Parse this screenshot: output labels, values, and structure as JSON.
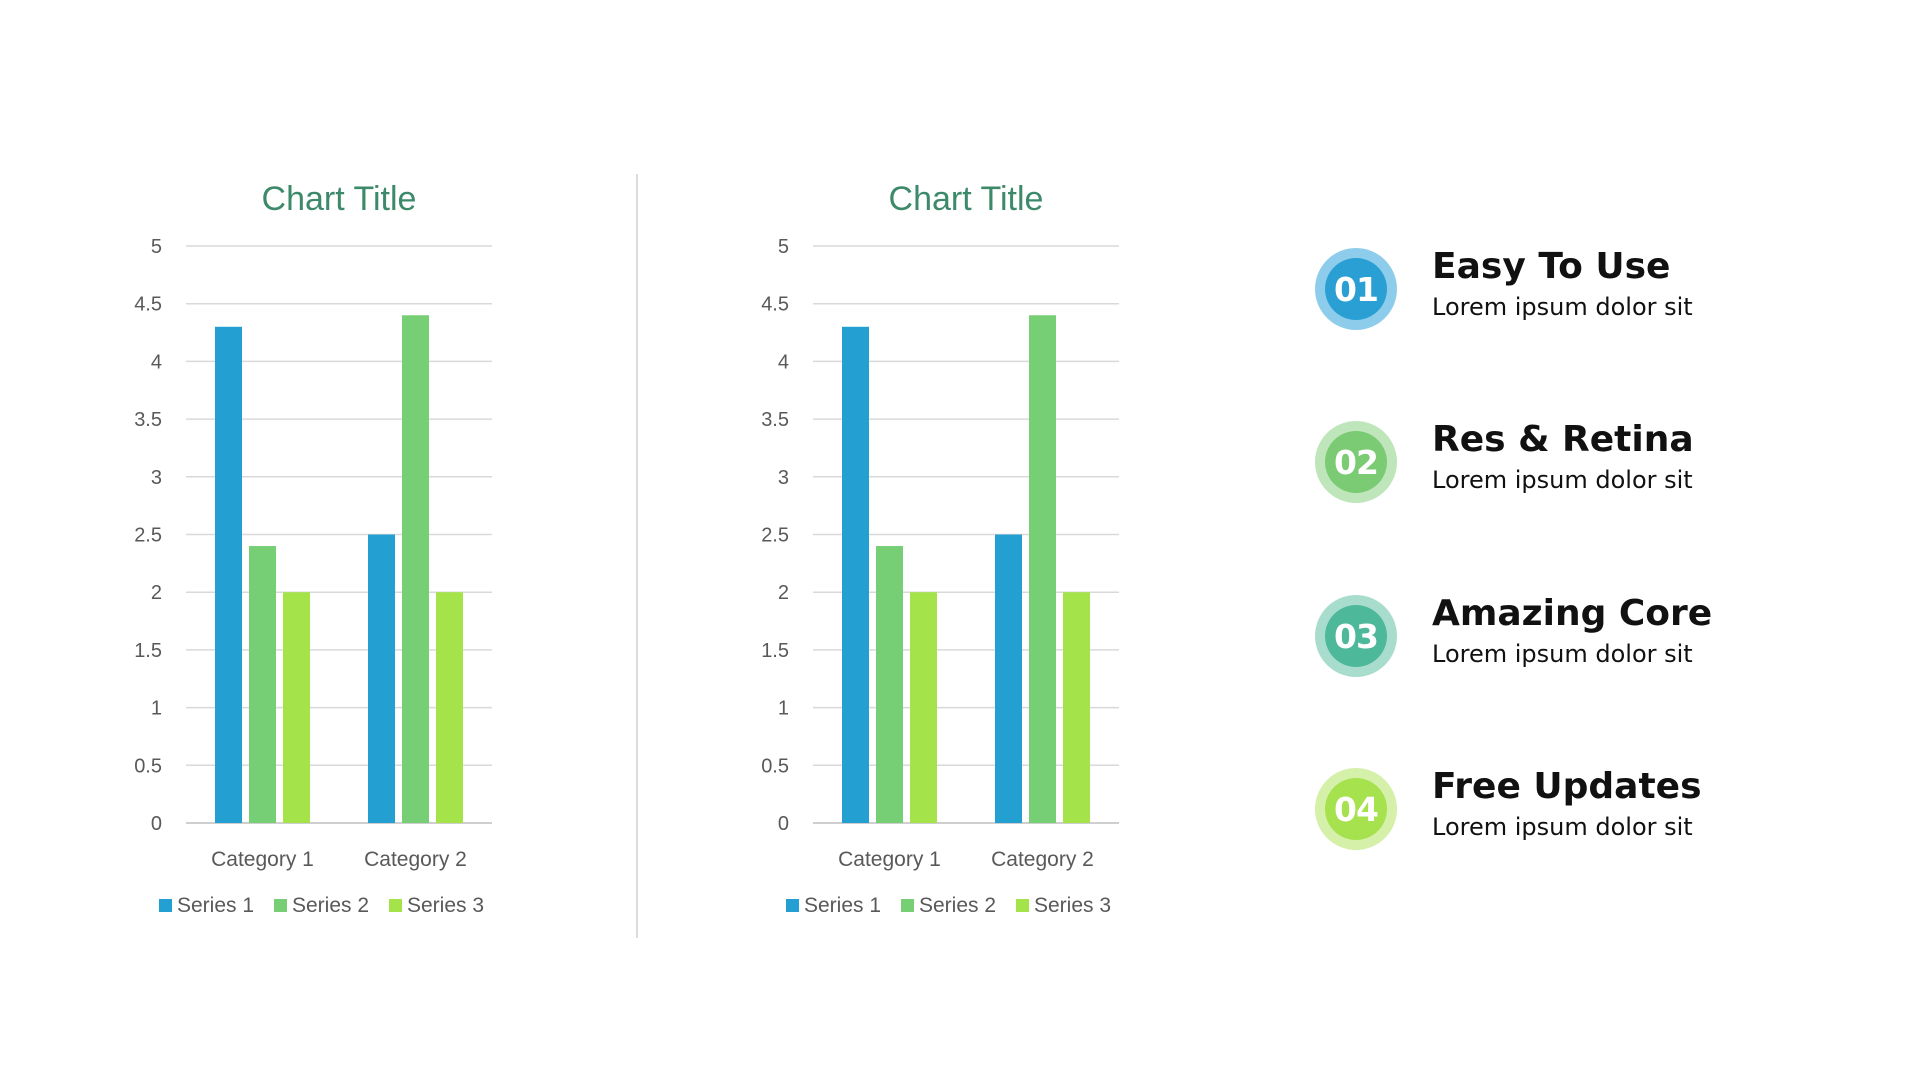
{
  "chart_data": [
    {
      "type": "bar",
      "title": "Chart Title",
      "categories": [
        "Category 1",
        "Category 2"
      ],
      "series": [
        {
          "name": "Series 1",
          "values": [
            4.3,
            2.5
          ],
          "color": "#239FD1"
        },
        {
          "name": "Series 2",
          "values": [
            2.4,
            4.4
          ],
          "color": "#77CF75"
        },
        {
          "name": "Series 3",
          "values": [
            2.0,
            2.0
          ],
          "color": "#A5E34B"
        }
      ],
      "ylim": [
        0,
        5
      ],
      "yticks": [
        "0",
        "0.5",
        "1",
        "1.5",
        "2",
        "2.5",
        "3",
        "3.5",
        "4",
        "4.5",
        "5"
      ],
      "grid": true,
      "legend": "bottom",
      "title_color": "#3D8A6B"
    },
    {
      "type": "bar",
      "title": "Chart Title",
      "categories": [
        "Category 1",
        "Category 2"
      ],
      "series": [
        {
          "name": "Series 1",
          "values": [
            4.3,
            2.5
          ],
          "color": "#239FD1"
        },
        {
          "name": "Series 2",
          "values": [
            2.4,
            4.4
          ],
          "color": "#77CF75"
        },
        {
          "name": "Series 3",
          "values": [
            2.0,
            2.0
          ],
          "color": "#A5E34B"
        }
      ],
      "ylim": [
        0,
        5
      ],
      "yticks": [
        "0",
        "0.5",
        "1",
        "1.5",
        "2",
        "2.5",
        "3",
        "3.5",
        "4",
        "4.5",
        "5"
      ],
      "grid": true,
      "legend": "bottom",
      "title_color": "#3D8A6B"
    }
  ],
  "features": [
    {
      "number": "01",
      "title": "Easy To Use",
      "description": "Lorem ipsum dolor sit",
      "color": "#2A9FD3",
      "ring_color": "#8DCDEB"
    },
    {
      "number": "02",
      "title": "Res & Retina",
      "description": "Lorem ipsum dolor sit",
      "color": "#7ACB74",
      "ring_color": "#BFE6BB"
    },
    {
      "number": "03",
      "title": "Amazing Core",
      "description": "Lorem ipsum dolor sit",
      "color": "#4DB89A",
      "ring_color": "#A8DDCD"
    },
    {
      "number": "04",
      "title": "Free Updates",
      "description": "Lorem ipsum dolor sit",
      "color": "#A6E14E",
      "ring_color": "#D5F0A8"
    }
  ]
}
